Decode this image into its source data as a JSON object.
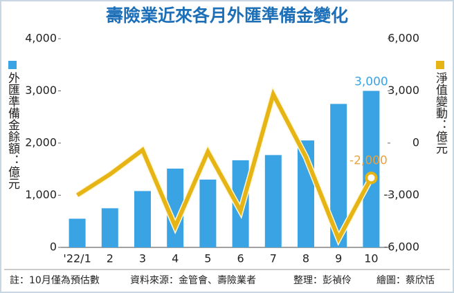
{
  "chart_data": {
    "type": "bar-line",
    "title": "壽險業近來各月外匯準備金變化",
    "categories": [
      "'22/1",
      "2",
      "3",
      "4",
      "5",
      "6",
      "7",
      "8",
      "9",
      "10"
    ],
    "series": [
      {
        "name": "外匯準備金餘額：億元",
        "type": "bar",
        "color": "#3aa3e3",
        "values": [
          550,
          750,
          1080,
          1510,
          1300,
          1670,
          1770,
          2050,
          2750,
          3000
        ],
        "value_labels": [
          null,
          null,
          null,
          null,
          null,
          null,
          null,
          null,
          null,
          "3,000"
        ]
      },
      {
        "name": "淨值變動：億元",
        "type": "line",
        "axis": "y2",
        "color": "#e7b416",
        "label_color": "#e8a33d",
        "values": [
          -3000,
          -1800,
          -400,
          -4800,
          -500,
          -3900,
          2800,
          -800,
          -5500,
          -2000
        ],
        "value_labels": [
          null,
          null,
          null,
          null,
          null,
          null,
          null,
          null,
          null,
          "-2,000"
        ]
      }
    ],
    "ylim": [
      0,
      4000
    ],
    "yticks": [
      {
        "value": 0,
        "label": "0"
      },
      {
        "value": 1000,
        "label": "1,000"
      },
      {
        "value": 2000,
        "label": "2,000"
      },
      {
        "value": 3000,
        "label": "3,000"
      },
      {
        "value": 4000,
        "label": "4,000"
      }
    ],
    "y2lim": [
      -6000,
      6000
    ],
    "y2ticks": [
      {
        "value": -6000,
        "label": "-6,000"
      },
      {
        "value": -3000,
        "label": "-3,000"
      },
      {
        "value": 0,
        "label": "0"
      },
      {
        "value": 3000,
        "label": "3,000"
      },
      {
        "value": 6000,
        "label": "6,000"
      }
    ],
    "grid": false,
    "notes": [
      "註：10月僅為預估數",
      "資料來源：金管會、壽險業者",
      "整理：彭禎伶",
      "繪圖：蔡欣恬"
    ]
  }
}
